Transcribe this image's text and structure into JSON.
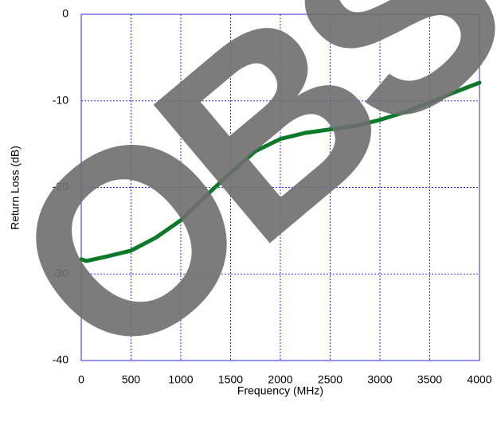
{
  "chart_data": {
    "type": "line",
    "x_label": "Frequency (MHz)",
    "y_label": "Return Loss (dB)",
    "watermark": "OBS",
    "x": [
      0,
      50,
      250,
      500,
      750,
      1000,
      1250,
      1500,
      1750,
      2000,
      2250,
      2500,
      2750,
      3000,
      3250,
      3500,
      3750,
      4000
    ],
    "series": [
      {
        "name": "Return Loss",
        "color": "#0b7a28",
        "values": [
          -28.3,
          -28.5,
          -28.0,
          -27.3,
          -25.8,
          -23.8,
          -21.0,
          -18.3,
          -15.8,
          -14.4,
          -13.7,
          -13.3,
          -12.9,
          -12.2,
          -11.3,
          -10.2,
          -9.0,
          -7.9
        ]
      }
    ],
    "xlim": [
      0,
      4000
    ],
    "xticks": [
      0,
      500,
      1000,
      1500,
      2000,
      2500,
      3000,
      3500,
      4000
    ],
    "ylim": [
      -40,
      0
    ],
    "yticks": [
      -40,
      -30,
      -20,
      -10,
      0
    ],
    "grid": true
  }
}
